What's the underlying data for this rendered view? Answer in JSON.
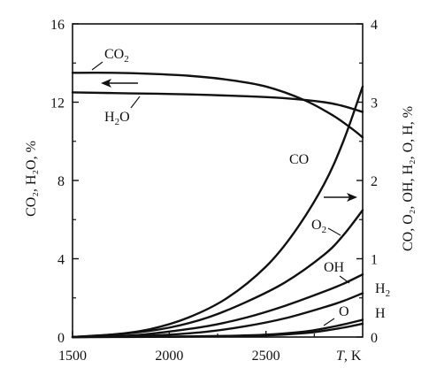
{
  "chart_data": {
    "type": "line",
    "x_axis": {
      "label_var": "T",
      "label_unit": ", K",
      "range": [
        1500,
        3000
      ],
      "ticks": [
        1500,
        2000,
        2500
      ],
      "tick_labels": [
        "1500",
        "2000",
        "2500"
      ]
    },
    "y_left": {
      "label": "CO₂, H₂O, %",
      "range": [
        0,
        16
      ],
      "ticks": [
        0,
        4,
        8,
        12,
        16
      ],
      "tick_labels": [
        "0",
        "4",
        "8",
        "12",
        "16"
      ]
    },
    "y_right": {
      "label": "CO, O₂, OH, H₂, O, H, %",
      "range": [
        0,
        4
      ],
      "ticks": [
        0,
        1,
        2,
        3,
        4
      ],
      "tick_labels": [
        "0",
        "1",
        "2",
        "3",
        "4"
      ]
    },
    "grid": false,
    "series": [
      {
        "name": "CO₂",
        "axis": "left",
        "x": [
          1500,
          1700,
          1900,
          2100,
          2300,
          2500,
          2700,
          2850,
          2950,
          3000
        ],
        "y": [
          13.5,
          13.5,
          13.45,
          13.35,
          13.15,
          12.8,
          12.1,
          11.3,
          10.6,
          10.2
        ]
      },
      {
        "name": "H₂O",
        "axis": "left",
        "x": [
          1500,
          1800,
          2100,
          2400,
          2600,
          2800,
          2900,
          3000
        ],
        "y": [
          12.5,
          12.45,
          12.4,
          12.3,
          12.2,
          12.0,
          11.8,
          11.5
        ]
      },
      {
        "name": "CO",
        "axis": "right",
        "x": [
          1500,
          1700,
          1900,
          2100,
          2300,
          2500,
          2650,
          2800,
          2900,
          3000
        ],
        "y": [
          0,
          0.03,
          0.1,
          0.25,
          0.5,
          0.9,
          1.35,
          1.95,
          2.5,
          3.2
        ]
      },
      {
        "name": "O₂",
        "axis": "right",
        "x": [
          1500,
          1800,
          2000,
          2200,
          2400,
          2600,
          2800,
          2900,
          3000
        ],
        "y": [
          0,
          0.05,
          0.12,
          0.25,
          0.45,
          0.7,
          1.05,
          1.3,
          1.62
        ]
      },
      {
        "name": "OH",
        "axis": "right",
        "x": [
          1500,
          1800,
          2000,
          2200,
          2400,
          2600,
          2800,
          2900,
          3000
        ],
        "y": [
          0,
          0.02,
          0.07,
          0.14,
          0.25,
          0.4,
          0.58,
          0.68,
          0.8
        ]
      },
      {
        "name": "H₂",
        "axis": "right",
        "x": [
          1500,
          1800,
          2000,
          2200,
          2400,
          2600,
          2800,
          2900,
          3000
        ],
        "y": [
          0,
          0.01,
          0.03,
          0.07,
          0.14,
          0.24,
          0.38,
          0.46,
          0.56
        ]
      },
      {
        "name": "O",
        "axis": "right",
        "x": [
          1500,
          2000,
          2300,
          2500,
          2700,
          2800,
          2900,
          3000
        ],
        "y": [
          0,
          0.005,
          0.015,
          0.03,
          0.07,
          0.11,
          0.16,
          0.22
        ]
      },
      {
        "name": "H",
        "axis": "right",
        "x": [
          1500,
          2000,
          2300,
          2500,
          2700,
          2800,
          2900,
          3000
        ],
        "y": [
          0,
          0.003,
          0.01,
          0.02,
          0.05,
          0.08,
          0.12,
          0.17
        ]
      }
    ],
    "series_labels": {
      "CO2": {
        "main": "CO",
        "sub": "2"
      },
      "H2O": {
        "pre": "H",
        "sub": "2",
        "post": "O"
      },
      "CO": {
        "main": "CO"
      },
      "O2": {
        "main": "O",
        "sub": "2"
      },
      "OH": {
        "main": "OH"
      },
      "H2": {
        "main": "H",
        "sub": "2"
      },
      "O": {
        "main": "O"
      },
      "H": {
        "main": "H"
      }
    },
    "annotations": [
      {
        "type": "arrow",
        "direction": "left",
        "refers_to": "left axis"
      },
      {
        "type": "arrow",
        "direction": "right",
        "refers_to": "right axis"
      }
    ]
  }
}
